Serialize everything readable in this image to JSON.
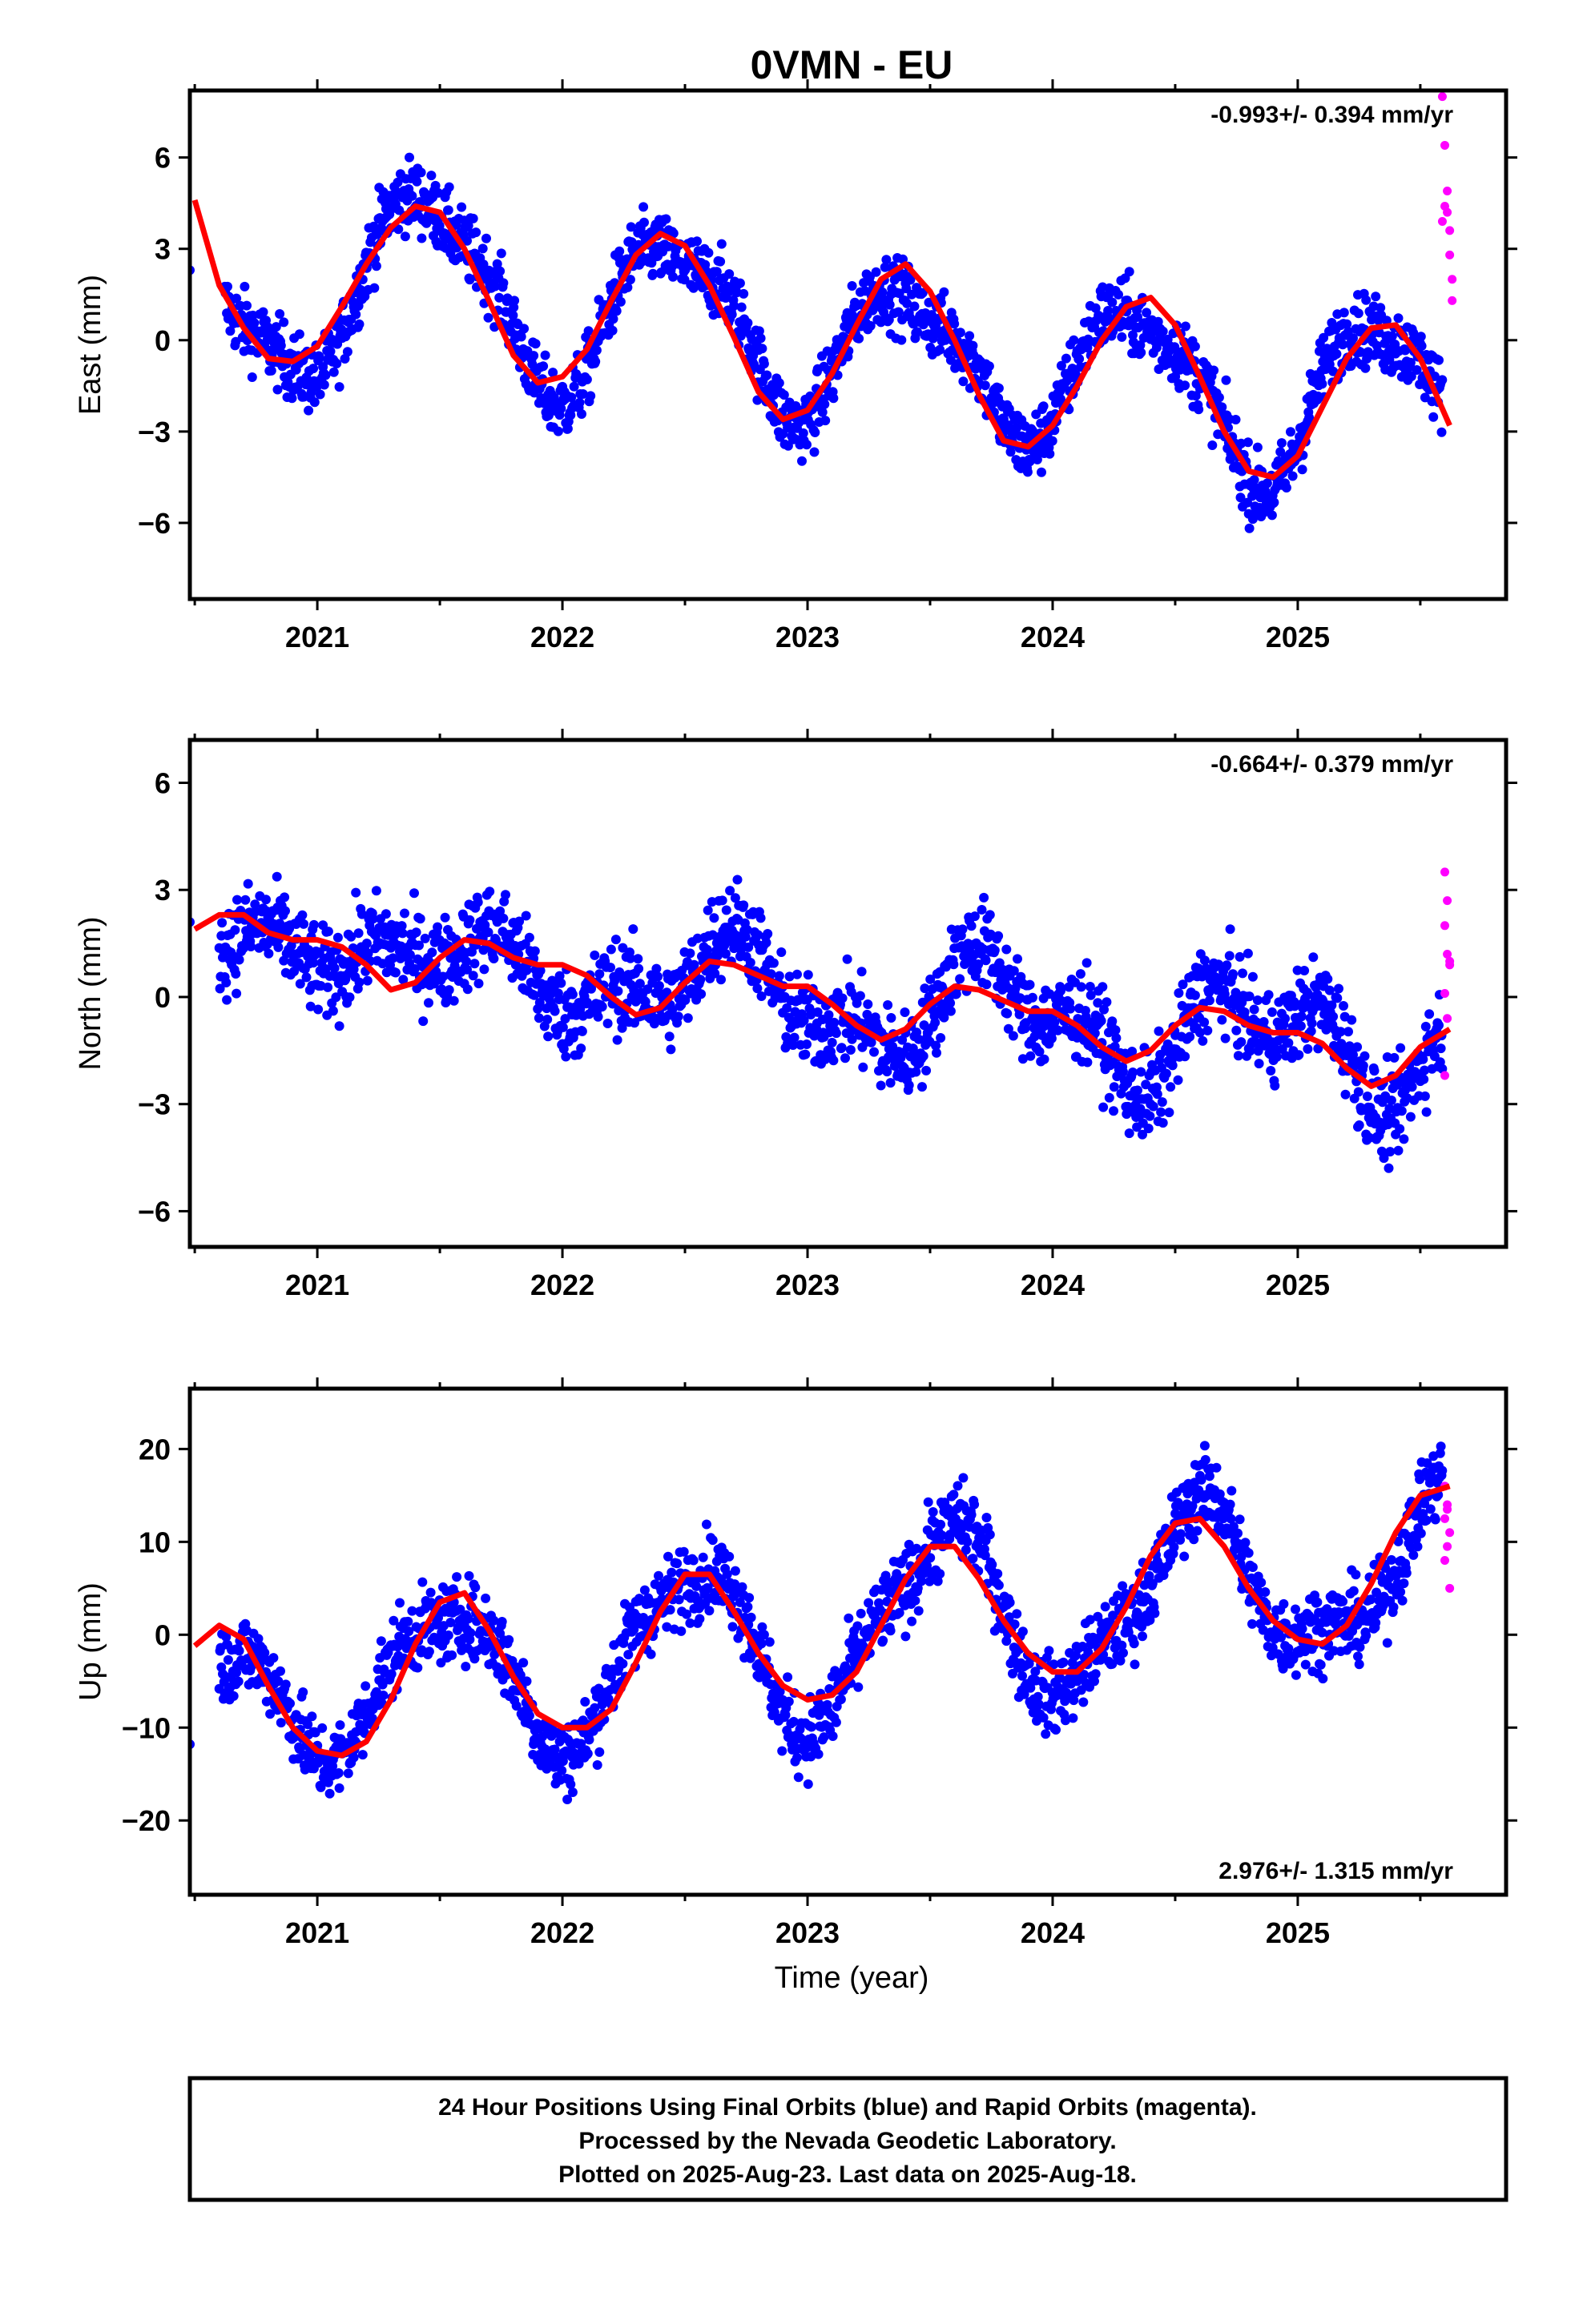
{
  "title": "0VMN - EU",
  "xlabel": "Time (year)",
  "caption": [
    "24 Hour Positions Using Final Orbits (blue) and Rapid Orbits (magenta).",
    "Processed by the Nevada Geodetic Laboratory.",
    "Plotted on 2025-Aug-23. Last data on 2025-Aug-18."
  ],
  "colors": {
    "final": "#0000ff",
    "rapid": "#ff00ff",
    "fit": "#ff0000",
    "frame": "#000000"
  },
  "chart_data": [
    {
      "type": "scatter",
      "ylabel": "East (mm)",
      "rate_label": "-0.993+/- 0.394 mm/yr",
      "rate_position": "top-right",
      "xlim": [
        2020.48,
        2025.85
      ],
      "ylim": [
        -8.5,
        8.2
      ],
      "yticks": [
        -6,
        -3,
        0,
        3,
        6
      ],
      "xticks": [
        2021,
        2022,
        2023,
        2024,
        2025
      ],
      "series": [
        {
          "values": [
            [
              2020.5,
              4.6
            ],
            [
              2020.6,
              1.8
            ],
            [
              2020.7,
              0.4
            ],
            [
              2020.8,
              -0.6
            ],
            [
              2020.9,
              -0.7
            ],
            [
              2021.0,
              -0.2
            ],
            [
              2021.1,
              1.1
            ],
            [
              2021.2,
              2.5
            ],
            [
              2021.3,
              3.7
            ],
            [
              2021.4,
              4.4
            ],
            [
              2021.5,
              4.2
            ],
            [
              2021.6,
              3.0
            ],
            [
              2021.7,
              1.3
            ],
            [
              2021.8,
              -0.5
            ],
            [
              2021.9,
              -1.4
            ],
            [
              2022.0,
              -1.2
            ],
            [
              2022.1,
              -0.3
            ],
            [
              2022.2,
              1.3
            ],
            [
              2022.3,
              2.8
            ],
            [
              2022.4,
              3.5
            ],
            [
              2022.5,
              3.1
            ],
            [
              2022.6,
              1.8
            ],
            [
              2022.7,
              0.1
            ],
            [
              2022.8,
              -1.7
            ],
            [
              2022.9,
              -2.6
            ],
            [
              2023.0,
              -2.3
            ],
            [
              2023.1,
              -1.1
            ],
            [
              2023.2,
              0.5
            ],
            [
              2023.3,
              2.0
            ],
            [
              2023.4,
              2.5
            ],
            [
              2023.5,
              1.6
            ],
            [
              2023.6,
              0.0
            ],
            [
              2023.7,
              -1.8
            ],
            [
              2023.8,
              -3.3
            ],
            [
              2023.9,
              -3.5
            ],
            [
              2024.0,
              -2.8
            ],
            [
              2024.1,
              -1.5
            ],
            [
              2024.2,
              0.0
            ],
            [
              2024.3,
              1.1
            ],
            [
              2024.4,
              1.4
            ],
            [
              2024.5,
              0.5
            ],
            [
              2024.6,
              -1.2
            ],
            [
              2024.7,
              -3.0
            ],
            [
              2024.8,
              -4.3
            ],
            [
              2024.9,
              -4.5
            ],
            [
              2025.0,
              -3.8
            ],
            [
              2025.1,
              -2.2
            ],
            [
              2025.2,
              -0.6
            ],
            [
              2025.3,
              0.4
            ],
            [
              2025.4,
              0.5
            ],
            [
              2025.5,
              -0.6
            ],
            [
              2025.62,
              -2.8
            ]
          ]
        }
      ],
      "scatter_fn": {
        "offset": -0.1,
        "trend": -0.993,
        "amp": 2.6,
        "phase": 0.05,
        "noise": 1.1,
        "mid": 2023.0
      },
      "gaps": [
        [
          2020.52,
          2020.62
        ]
      ],
      "rapid_points": [
        [
          2025.59,
          8.0
        ],
        [
          2025.6,
          6.4
        ],
        [
          2025.61,
          4.9
        ],
        [
          2025.61,
          4.2
        ],
        [
          2025.62,
          3.6
        ],
        [
          2025.62,
          2.8
        ],
        [
          2025.63,
          2.0
        ],
        [
          2025.63,
          1.3
        ],
        [
          2025.6,
          4.4
        ],
        [
          2025.59,
          3.9
        ]
      ],
      "first_point": [
        2020.48,
        2.3
      ]
    },
    {
      "type": "scatter",
      "ylabel": "North (mm)",
      "rate_label": "-0.664+/- 0.379 mm/yr",
      "rate_position": "top-right",
      "xlim": [
        2020.48,
        2025.85
      ],
      "ylim": [
        -7.0,
        7.2
      ],
      "yticks": [
        -6,
        -3,
        0,
        3,
        6
      ],
      "xticks": [
        2021,
        2022,
        2023,
        2024,
        2025
      ],
      "series": [
        {
          "values": [
            [
              2020.5,
              1.9
            ],
            [
              2020.6,
              2.3
            ],
            [
              2020.7,
              2.3
            ],
            [
              2020.8,
              1.8
            ],
            [
              2020.9,
              1.6
            ],
            [
              2021.0,
              1.6
            ],
            [
              2021.1,
              1.4
            ],
            [
              2021.2,
              0.9
            ],
            [
              2021.3,
              0.2
            ],
            [
              2021.4,
              0.4
            ],
            [
              2021.5,
              1.1
            ],
            [
              2021.6,
              1.6
            ],
            [
              2021.7,
              1.5
            ],
            [
              2021.8,
              1.1
            ],
            [
              2021.9,
              0.9
            ],
            [
              2022.0,
              0.9
            ],
            [
              2022.1,
              0.6
            ],
            [
              2022.2,
              0.0
            ],
            [
              2022.3,
              -0.5
            ],
            [
              2022.4,
              -0.3
            ],
            [
              2022.5,
              0.4
            ],
            [
              2022.6,
              1.0
            ],
            [
              2022.7,
              0.9
            ],
            [
              2022.8,
              0.6
            ],
            [
              2022.9,
              0.3
            ],
            [
              2023.0,
              0.3
            ],
            [
              2023.1,
              -0.2
            ],
            [
              2023.2,
              -0.8
            ],
            [
              2023.3,
              -1.2
            ],
            [
              2023.4,
              -0.9
            ],
            [
              2023.5,
              -0.2
            ],
            [
              2023.6,
              0.3
            ],
            [
              2023.7,
              0.2
            ],
            [
              2023.8,
              -0.1
            ],
            [
              2023.9,
              -0.4
            ],
            [
              2024.0,
              -0.4
            ],
            [
              2024.1,
              -0.8
            ],
            [
              2024.2,
              -1.4
            ],
            [
              2024.3,
              -1.8
            ],
            [
              2024.4,
              -1.5
            ],
            [
              2024.5,
              -0.8
            ],
            [
              2024.6,
              -0.3
            ],
            [
              2024.7,
              -0.4
            ],
            [
              2024.8,
              -0.8
            ],
            [
              2024.9,
              -1.0
            ],
            [
              2025.0,
              -1.0
            ],
            [
              2025.1,
              -1.3
            ],
            [
              2025.2,
              -2.0
            ],
            [
              2025.3,
              -2.5
            ],
            [
              2025.4,
              -2.2
            ],
            [
              2025.5,
              -1.4
            ],
            [
              2025.62,
              -0.9
            ]
          ]
        }
      ],
      "scatter_fn": {
        "offset": 0.2,
        "trend": -0.664,
        "amp": 1.3,
        "phase": 0.3,
        "noise": 1.2,
        "mid": 2023.0
      },
      "gaps": [],
      "rapid_points": [
        [
          2025.6,
          3.5
        ],
        [
          2025.61,
          2.7
        ],
        [
          2025.6,
          2.0
        ],
        [
          2025.61,
          1.2
        ],
        [
          2025.62,
          0.9
        ],
        [
          2025.6,
          0.1
        ],
        [
          2025.61,
          -0.6
        ],
        [
          2025.6,
          -2.2
        ],
        [
          2025.62,
          1.0
        ]
      ],
      "first_point": [
        2020.48,
        2.1
      ]
    },
    {
      "type": "scatter",
      "ylabel": "Up (mm)",
      "rate_label": "2.976+/- 1.315 mm/yr",
      "rate_position": "bottom-right",
      "xlim": [
        2020.48,
        2025.85
      ],
      "ylim": [
        -28.0,
        26.5
      ],
      "yticks": [
        -20,
        -10,
        0,
        10,
        20
      ],
      "xticks": [
        2021,
        2022,
        2023,
        2024,
        2025
      ],
      "series": [
        {
          "values": [
            [
              2020.5,
              -1.2
            ],
            [
              2020.6,
              1.0
            ],
            [
              2020.7,
              -0.5
            ],
            [
              2020.8,
              -5.5
            ],
            [
              2020.9,
              -10.0
            ],
            [
              2021.0,
              -12.5
            ],
            [
              2021.1,
              -13.0
            ],
            [
              2021.2,
              -11.5
            ],
            [
              2021.3,
              -7.0
            ],
            [
              2021.4,
              -1.0
            ],
            [
              2021.5,
              3.5
            ],
            [
              2021.6,
              4.5
            ],
            [
              2021.7,
              0.5
            ],
            [
              2021.8,
              -4.5
            ],
            [
              2021.9,
              -8.5
            ],
            [
              2022.0,
              -10.0
            ],
            [
              2022.1,
              -10.0
            ],
            [
              2022.2,
              -8.0
            ],
            [
              2022.3,
              -3.0
            ],
            [
              2022.4,
              2.5
            ],
            [
              2022.5,
              6.5
            ],
            [
              2022.6,
              6.5
            ],
            [
              2022.7,
              2.5
            ],
            [
              2022.8,
              -2.0
            ],
            [
              2022.9,
              -5.5
            ],
            [
              2023.0,
              -7.0
            ],
            [
              2023.1,
              -6.5
            ],
            [
              2023.2,
              -4.0
            ],
            [
              2023.3,
              1.0
            ],
            [
              2023.4,
              6.0
            ],
            [
              2023.5,
              9.5
            ],
            [
              2023.6,
              9.5
            ],
            [
              2023.7,
              6.0
            ],
            [
              2023.8,
              1.5
            ],
            [
              2023.9,
              -2.0
            ],
            [
              2024.0,
              -4.0
            ],
            [
              2024.1,
              -4.0
            ],
            [
              2024.2,
              -1.5
            ],
            [
              2024.3,
              3.0
            ],
            [
              2024.4,
              8.5
            ],
            [
              2024.5,
              12.0
            ],
            [
              2024.6,
              12.5
            ],
            [
              2024.7,
              9.5
            ],
            [
              2024.8,
              5.0
            ],
            [
              2024.9,
              1.5
            ],
            [
              2025.0,
              -0.5
            ],
            [
              2025.1,
              -1.0
            ],
            [
              2025.2,
              1.0
            ],
            [
              2025.3,
              5.5
            ],
            [
              2025.4,
              11.0
            ],
            [
              2025.5,
              15.0
            ],
            [
              2025.62,
              16.0
            ]
          ]
        }
      ],
      "scatter_fn": {
        "offset": 0.0,
        "trend": 2.976,
        "amp": 8.5,
        "phase": 1.6,
        "noise": 4.0,
        "mid": 2023.0
      },
      "gaps": [
        [
          2020.5,
          2020.6
        ]
      ],
      "rapid_points": [
        [
          2025.6,
          16.0
        ],
        [
          2025.61,
          14.0
        ],
        [
          2025.6,
          12.5
        ],
        [
          2025.62,
          11.0
        ],
        [
          2025.61,
          9.5
        ],
        [
          2025.6,
          8.0
        ],
        [
          2025.62,
          5.0
        ],
        [
          2025.61,
          13.5
        ]
      ],
      "first_point": [
        2020.48,
        -11.8
      ]
    }
  ]
}
